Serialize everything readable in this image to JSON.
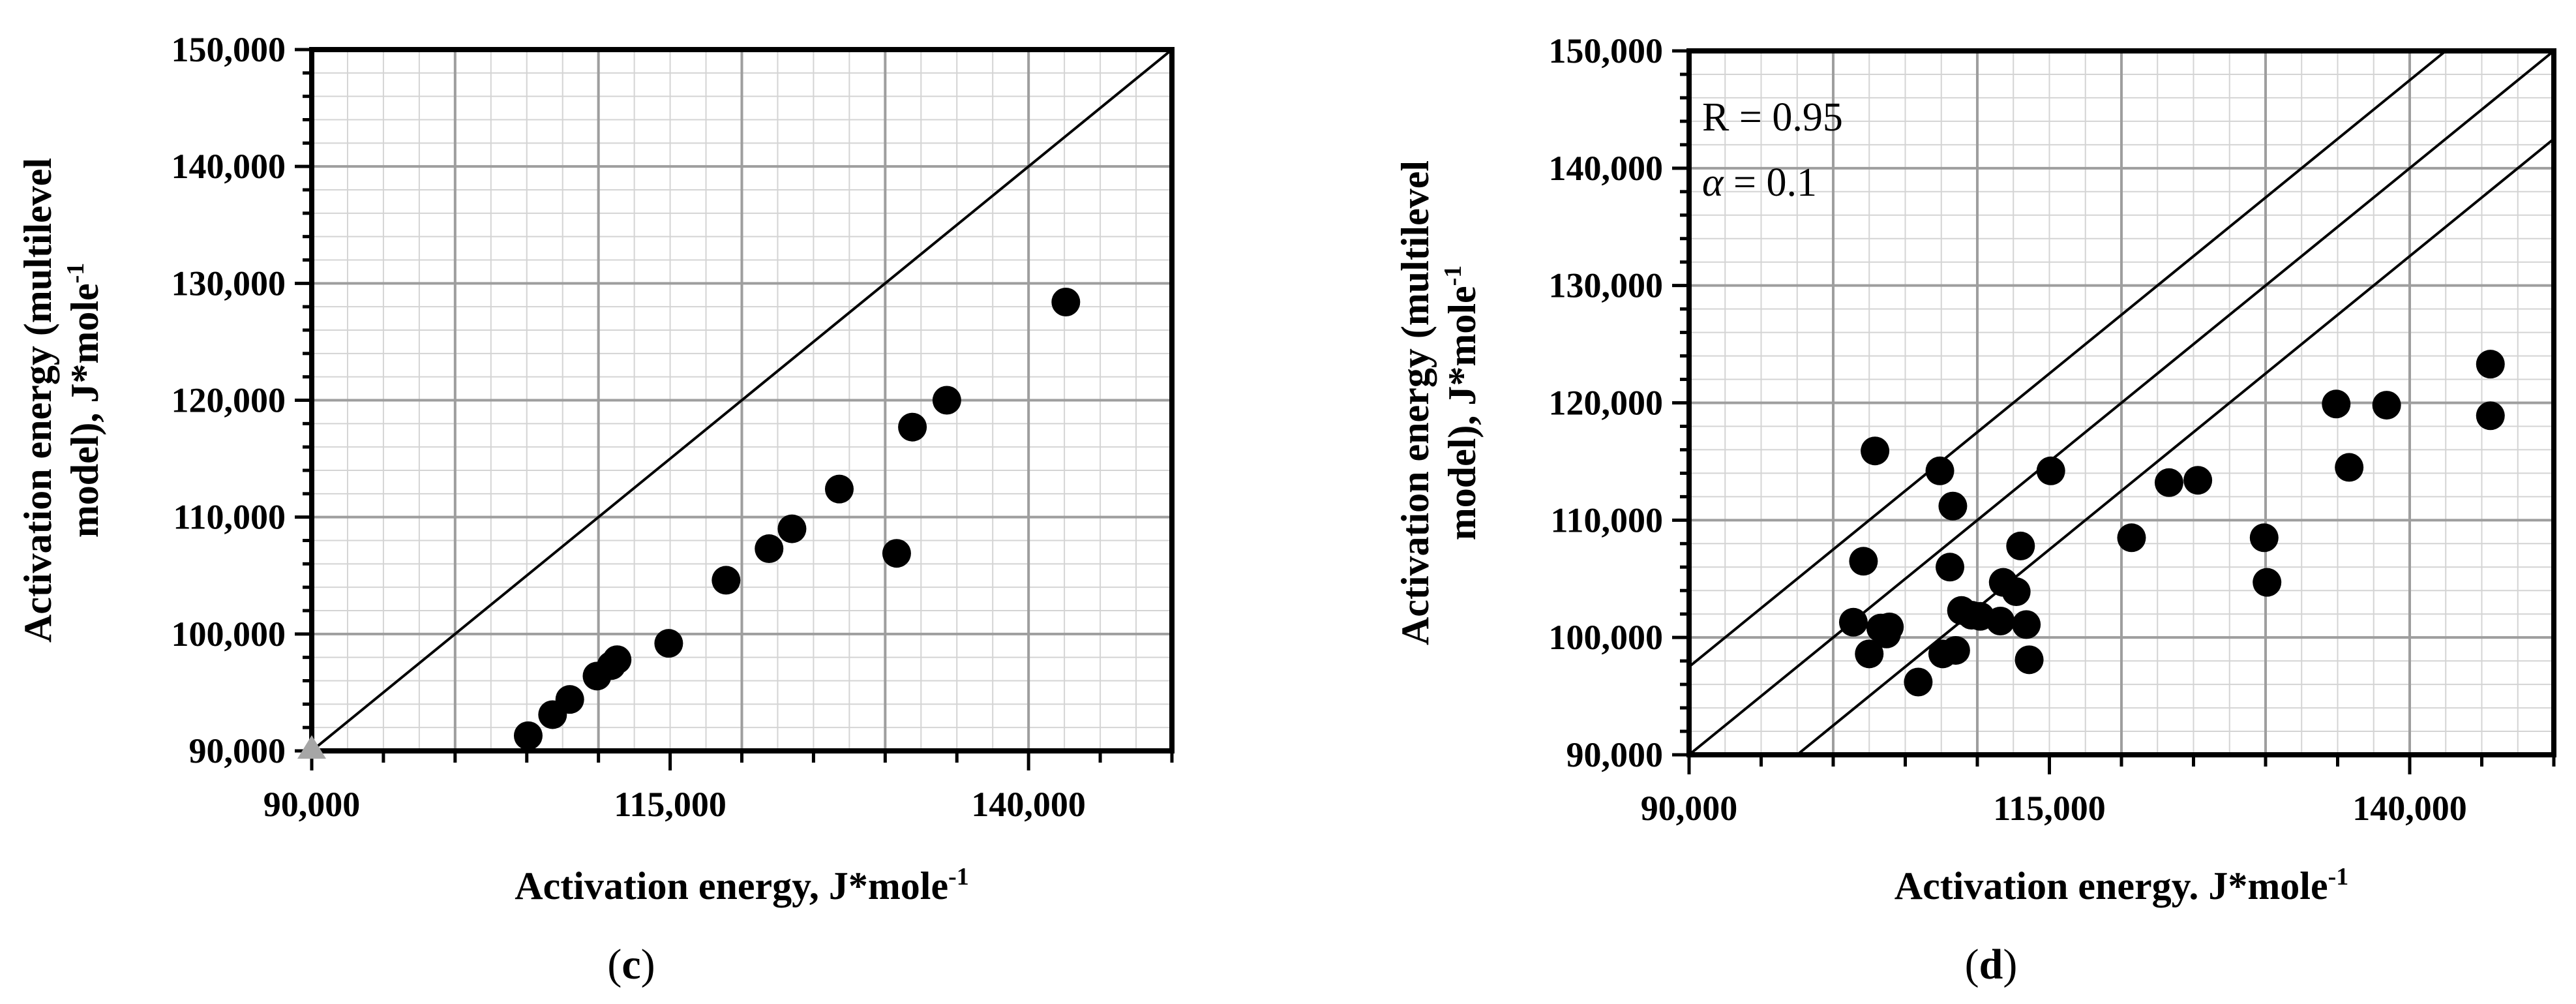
{
  "chart_data": [
    {
      "type": "scatter",
      "panel_label": "c",
      "xlabel": "Activation energy, J*mole",
      "xlabel_sup": "-1",
      "ylabel_line1": "Activation energy (multilevel",
      "ylabel_line2": "model), J*mole",
      "ylabel_sup": "-1",
      "xlim": [
        90000,
        150000
      ],
      "ylim": [
        90000,
        150000
      ],
      "x_ticks": [
        90000,
        115000,
        140000
      ],
      "x_tick_labels": [
        "90,000",
        "115,000",
        "140,000"
      ],
      "y_ticks": [
        90000,
        100000,
        110000,
        120000,
        130000,
        140000,
        150000
      ],
      "y_tick_labels": [
        "90,000",
        "100,000",
        "110,000",
        "120,000",
        "130,000",
        "140,000",
        "150,000"
      ],
      "grid": true,
      "reference_lines": [
        {
          "intercept": 0
        }
      ],
      "origin_marker": {
        "x": 90000,
        "y": 90000,
        "color": "#a6a6a6"
      },
      "points": [
        {
          "x": 105100,
          "y": 91300
        },
        {
          "x": 106800,
          "y": 93100
        },
        {
          "x": 108000,
          "y": 94400
        },
        {
          "x": 109900,
          "y": 96400
        },
        {
          "x": 110900,
          "y": 97300
        },
        {
          "x": 111300,
          "y": 97800
        },
        {
          "x": 114900,
          "y": 99200
        },
        {
          "x": 118900,
          "y": 104600
        },
        {
          "x": 121900,
          "y": 107300
        },
        {
          "x": 123500,
          "y": 109000
        },
        {
          "x": 126800,
          "y": 112400
        },
        {
          "x": 130800,
          "y": 106900
        },
        {
          "x": 131900,
          "y": 117700
        },
        {
          "x": 134300,
          "y": 120000
        },
        {
          "x": 142600,
          "y": 128400
        }
      ]
    },
    {
      "type": "scatter",
      "panel_label": "d",
      "xlabel": "Activation energy. J*mole",
      "xlabel_sup": "-1",
      "ylabel_line1": "Activation energy (multilevel",
      "ylabel_line2": "model), J*mole",
      "ylabel_sup": "-1",
      "annotation_r": "R = 0.95",
      "annotation_alpha_symbol": "α",
      "annotation_alpha_value": " = 0.1",
      "xlim": [
        90000,
        150000
      ],
      "ylim": [
        90000,
        150000
      ],
      "x_ticks": [
        90000,
        115000,
        140000
      ],
      "x_tick_labels": [
        "90,000",
        "115,000",
        "140,000"
      ],
      "y_ticks": [
        90000,
        100000,
        110000,
        120000,
        130000,
        140000,
        150000
      ],
      "y_tick_labels": [
        "90,000",
        "100,000",
        "110,000",
        "120,000",
        "130,000",
        "140,000",
        "150,000"
      ],
      "grid": true,
      "reference_lines": [
        {
          "intercept": 7500
        },
        {
          "intercept": 0
        },
        {
          "intercept": -7500
        }
      ],
      "points": [
        {
          "x": 101400,
          "y": 101300
        },
        {
          "x": 102100,
          "y": 106500
        },
        {
          "x": 102500,
          "y": 98600
        },
        {
          "x": 102900,
          "y": 115900
        },
        {
          "x": 103300,
          "y": 100800
        },
        {
          "x": 103700,
          "y": 100300
        },
        {
          "x": 103900,
          "y": 100900
        },
        {
          "x": 105900,
          "y": 96200
        },
        {
          "x": 107400,
          "y": 114200
        },
        {
          "x": 107600,
          "y": 98600
        },
        {
          "x": 108100,
          "y": 106000
        },
        {
          "x": 108300,
          "y": 111200
        },
        {
          "x": 108500,
          "y": 98900
        },
        {
          "x": 108900,
          "y": 102300
        },
        {
          "x": 109600,
          "y": 101900
        },
        {
          "x": 110200,
          "y": 101800
        },
        {
          "x": 111600,
          "y": 101400
        },
        {
          "x": 111800,
          "y": 104700
        },
        {
          "x": 112700,
          "y": 103900
        },
        {
          "x": 113000,
          "y": 107800
        },
        {
          "x": 113400,
          "y": 101100
        },
        {
          "x": 113600,
          "y": 98100
        },
        {
          "x": 115100,
          "y": 114200
        },
        {
          "x": 120700,
          "y": 108500
        },
        {
          "x": 123300,
          "y": 113200
        },
        {
          "x": 125300,
          "y": 113400
        },
        {
          "x": 129900,
          "y": 108500
        },
        {
          "x": 130100,
          "y": 104700
        },
        {
          "x": 134900,
          "y": 119900
        },
        {
          "x": 135800,
          "y": 114500
        },
        {
          "x": 138400,
          "y": 119800
        },
        {
          "x": 145600,
          "y": 123300
        },
        {
          "x": 145600,
          "y": 118900
        }
      ]
    }
  ]
}
